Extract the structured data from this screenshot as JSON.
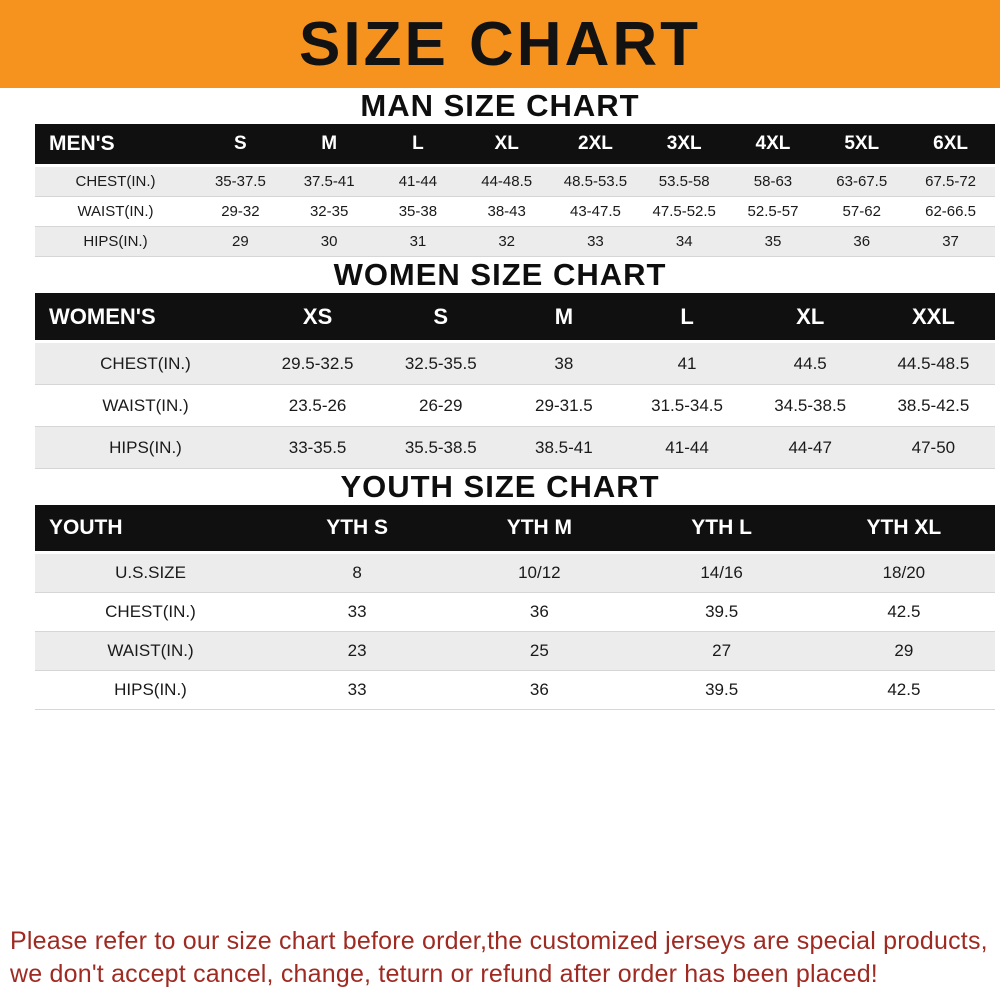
{
  "banner": {
    "title": "SIZE CHART",
    "bg_color": "#F6921E",
    "text_color": "#121212"
  },
  "sections": [
    {
      "heading": "MAN SIZE CHART",
      "table": {
        "header": [
          "MEN'S",
          "S",
          "M",
          "L",
          "XL",
          "2XL",
          "3XL",
          "4XL",
          "5XL",
          "6XL"
        ],
        "rows": [
          {
            "label": "CHEST(IN.)",
            "values": [
              "35-37.5",
              "37.5-41",
              "41-44",
              "44-48.5",
              "48.5-53.5",
              "53.5-58",
              "58-63",
              "63-67.5",
              "67.5-72"
            ]
          },
          {
            "label": "WAIST(IN.)",
            "values": [
              "29-32",
              "32-35",
              "35-38",
              "38-43",
              "43-47.5",
              "47.5-52.5",
              "52.5-57",
              "57-62",
              "62-66.5"
            ]
          },
          {
            "label": "HIPS(IN.)",
            "values": [
              "29",
              "30",
              "31",
              "32",
              "33",
              "34",
              "35",
              "36",
              "37"
            ]
          }
        ]
      }
    },
    {
      "heading": "WOMEN SIZE CHART",
      "table": {
        "header": [
          "WOMEN'S",
          "XS",
          "S",
          "M",
          "L",
          "XL",
          "XXL"
        ],
        "rows": [
          {
            "label": "CHEST(IN.)",
            "values": [
              "29.5-32.5",
              "32.5-35.5",
              "38",
              "41",
              "44.5",
              "44.5-48.5"
            ]
          },
          {
            "label": "WAIST(IN.)",
            "values": [
              "23.5-26",
              "26-29",
              "29-31.5",
              "31.5-34.5",
              "34.5-38.5",
              "38.5-42.5"
            ]
          },
          {
            "label": "HIPS(IN.)",
            "values": [
              "33-35.5",
              "35.5-38.5",
              "38.5-41",
              "41-44",
              "44-47",
              "47-50"
            ]
          }
        ]
      }
    },
    {
      "heading": "YOUTH SIZE CHART",
      "table": {
        "header": [
          "YOUTH",
          "YTH S",
          "YTH M",
          "YTH L",
          "YTH XL"
        ],
        "rows": [
          {
            "label": "U.S.SIZE",
            "values": [
              "8",
              "10/12",
              "14/16",
              "18/20"
            ]
          },
          {
            "label": "CHEST(IN.)",
            "values": [
              "33",
              "36",
              "39.5",
              "42.5"
            ]
          },
          {
            "label": "WAIST(IN.)",
            "values": [
              "23",
              "25",
              "27",
              "29"
            ]
          },
          {
            "label": "HIPS(IN.)",
            "values": [
              "33",
              "36",
              "39.5",
              "42.5"
            ]
          }
        ]
      }
    }
  ],
  "footer": {
    "line1": "Please refer to our size chart before order,the customized jerseys are special products,",
    "line2": "we don't accept cancel, change, teturn or refund after order has been placed!",
    "text_color": "#9E2A22"
  }
}
